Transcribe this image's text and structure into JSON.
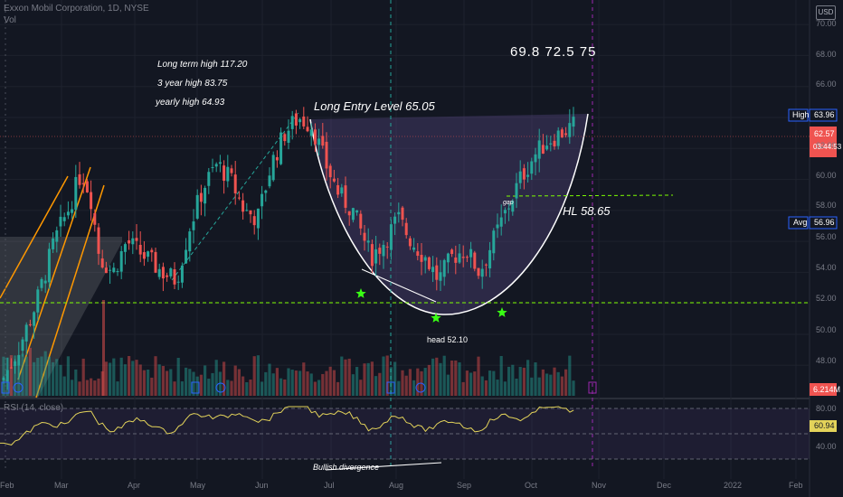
{
  "header": {
    "symbol": "Exxon Mobil Corporation, 1D, NYSE",
    "vol": "Vol",
    "currency": "USD"
  },
  "annotations": {
    "lt_high": "Long term high  117.20",
    "y3_high": "3 year high  83.75",
    "yr_high": "yearly high 64.93",
    "long_entry": "Long Entry Level   65.05",
    "targets": "69.8  72.5  75",
    "hl": "HL   58.65",
    "gap": "gap",
    "head": "head 52.10",
    "bullish": "Bullish divergence"
  },
  "rsi": {
    "label": "RSI (14, close)",
    "value": "60.94",
    "levels": [
      "80.00",
      "60.00",
      "40.00"
    ]
  },
  "price_axis": {
    "ticks": [
      "70.00",
      "68.00",
      "66.00",
      "64.00",
      "62.00",
      "60.00",
      "58.00",
      "56.00",
      "54.00",
      "52.00",
      "50.00",
      "48.00"
    ]
  },
  "price_tags": {
    "high_label": "High",
    "high_value": "63.96",
    "last_price": "62.57",
    "countdown": "03:44:53",
    "avg_label": "Avg",
    "avg_value": "56.96",
    "volume": "6.214M"
  },
  "time_axis": [
    "Feb",
    "Mar",
    "Apr",
    "May",
    "Jun",
    "Jul",
    "Aug",
    "Sep",
    "Oct",
    "Nov",
    "Dec",
    "2022",
    "Feb"
  ],
  "chart_data": {
    "type": "candlestick",
    "key_levels": {
      "long_entry": 65.05,
      "higher_low": 58.65,
      "head": 52.1,
      "yearly_high": 64.93,
      "three_year_high": 83.75,
      "long_term_high": 117.2
    },
    "targets": [
      69.8,
      72.5,
      75
    ],
    "last_price": 62.57,
    "high": 63.96,
    "average": 56.96,
    "rsi_last": 60.94,
    "ylim": [
      46.5,
      71
    ],
    "colors": {
      "up": "#26a69a",
      "down": "#ef5350",
      "background": "#131722",
      "cup": "#5b4a8a"
    }
  }
}
